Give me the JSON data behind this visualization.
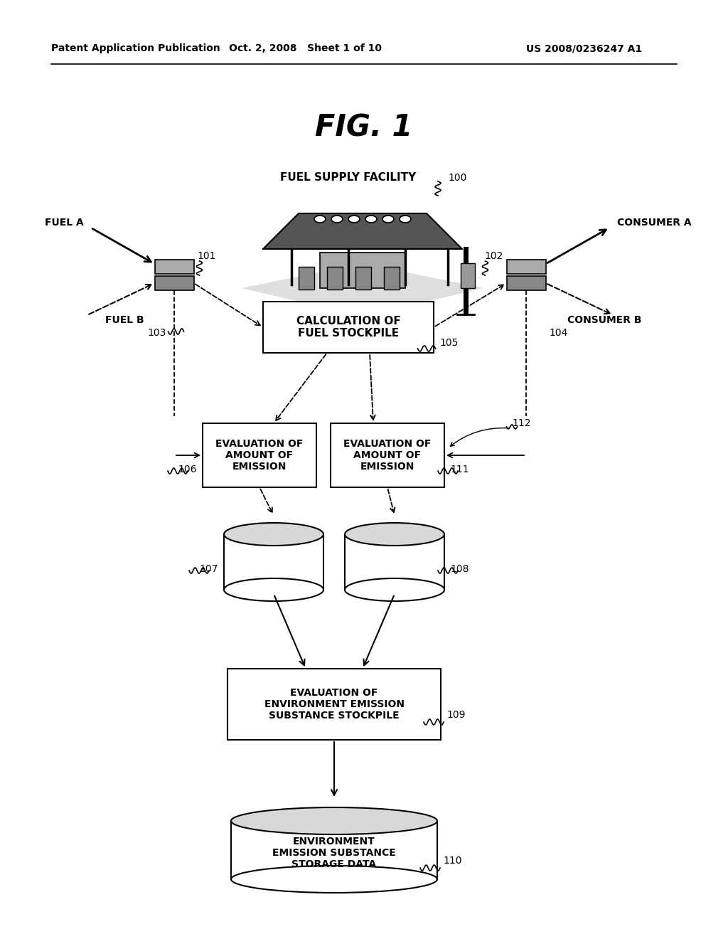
{
  "bg_color": "#ffffff",
  "header_left": "Patent Application Publication",
  "header_mid": "Oct. 2, 2008   Sheet 1 of 10",
  "header_right": "US 2008/0236247 A1",
  "fig_title": "FIG. 1",
  "label_calc": "CALCULATION OF\nFUEL STOCKPILE",
  "label_eval1": "EVALUATION OF\nAMOUNT OF\nEMISSION",
  "label_eval2": "EVALUATION OF\nAMOUNT OF\nEMISSION",
  "label_eval_env": "EVALUATION OF\nENVIRONMENT EMISSION\nSUBSTANCE STOCKPILE",
  "label_env_data": "ENVIRONMENT\nEMISSION SUBSTANCE\nSTORAGE DATA",
  "label_fuel_supply": "FUEL SUPPLY FACILITY",
  "label_fuel_a": "FUEL A",
  "label_fuel_b": "FUEL B",
  "label_consumer_a": "CONSUMER A",
  "label_consumer_b": "CONSUMER B"
}
